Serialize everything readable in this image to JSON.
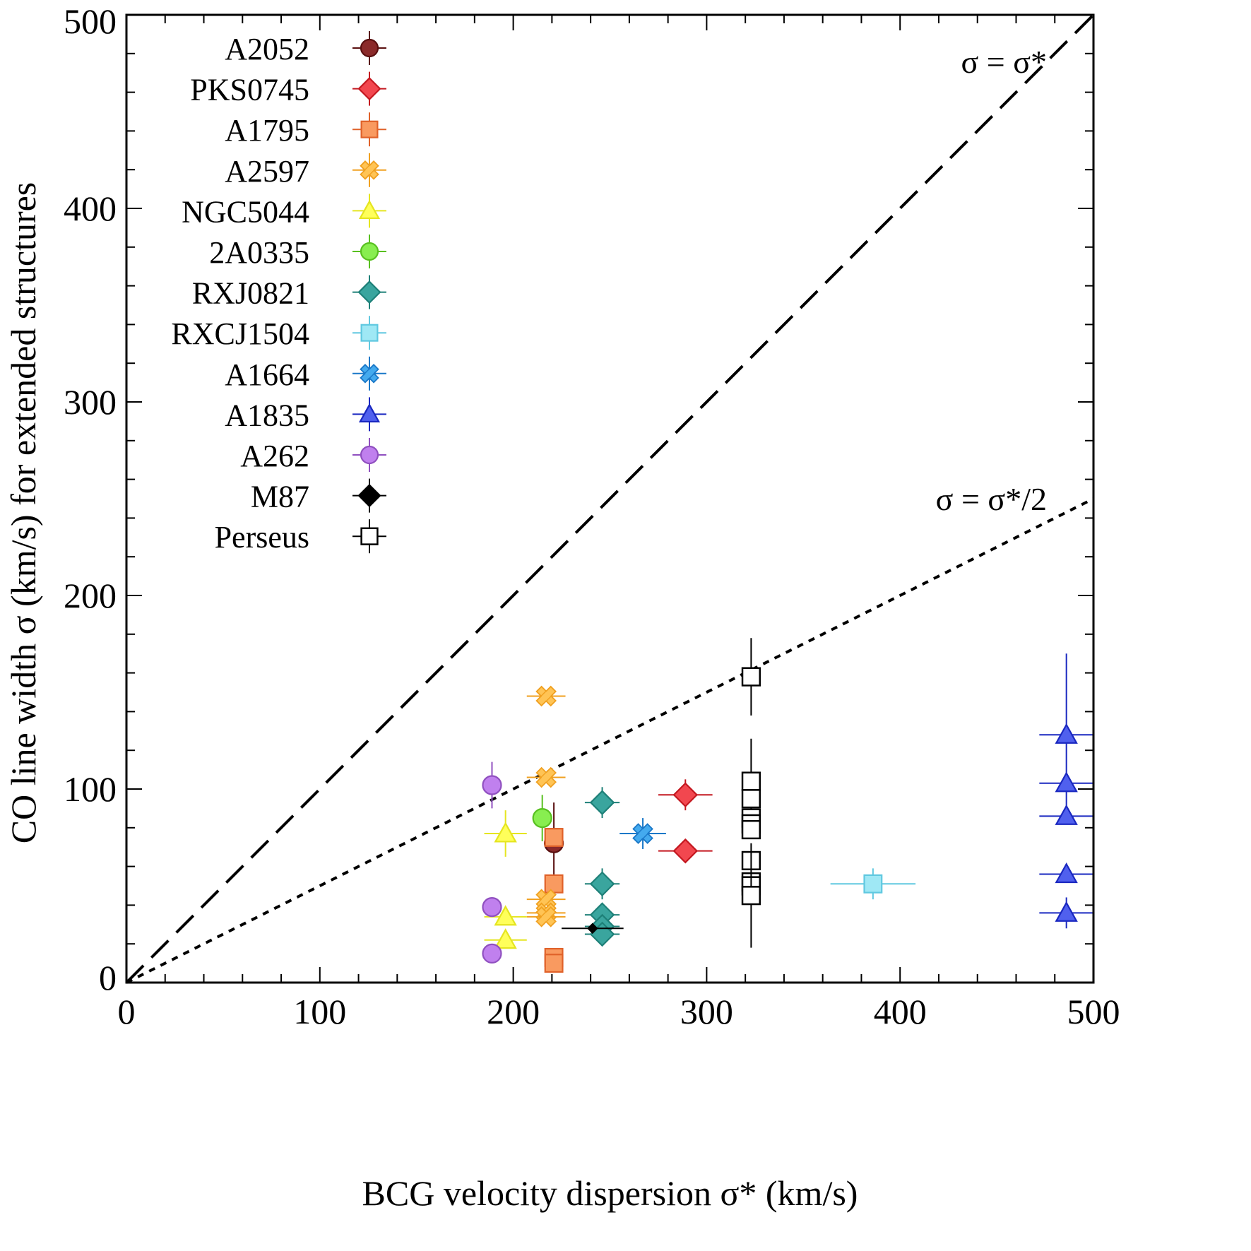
{
  "chart_data": {
    "type": "scatter",
    "title": "",
    "xlabel": "BCG velocity dispersion σ* (km/s)",
    "ylabel": "CO line width σ (km/s) for extended structures",
    "xlim": [
      0,
      500
    ],
    "ylim": [
      0,
      500
    ],
    "x_ticks": [
      "0",
      "100",
      "200",
      "300",
      "400",
      "500"
    ],
    "y_ticks": [
      "0",
      "100",
      "200",
      "300",
      "400",
      "500"
    ],
    "grid": false,
    "legend_position": "top-left",
    "reference_lines": [
      {
        "name": "σ = σ*",
        "slope": 1,
        "style": "dashed"
      },
      {
        "name": "σ = σ*/2",
        "slope": 0.5,
        "style": "dotted"
      }
    ],
    "series": [
      {
        "name": "A2052",
        "marker": "circle",
        "color": "#8b2a2a",
        "edge": "#5a1010",
        "points": [
          {
            "x": 221,
            "y": 72,
            "xerr": 0,
            "yerr": 21
          }
        ]
      },
      {
        "name": "PKS0745",
        "marker": "diamond",
        "color": "#f2474f",
        "edge": "#c41820",
        "points": [
          {
            "x": 289,
            "y": 97,
            "xerr": 14,
            "yerr": 8
          },
          {
            "x": 289,
            "y": 68,
            "xerr": 14,
            "yerr": 0
          }
        ]
      },
      {
        "name": "A1795",
        "marker": "square",
        "color": "#f99a60",
        "edge": "#e0622a",
        "points": [
          {
            "x": 221,
            "y": 75,
            "xerr": 0,
            "yerr": 0
          },
          {
            "x": 221,
            "y": 51,
            "xerr": 0,
            "yerr": 0
          },
          {
            "x": 221,
            "y": 13,
            "xerr": 0,
            "yerr": 0
          },
          {
            "x": 221,
            "y": 10,
            "xerr": 0,
            "yerr": 0
          }
        ]
      },
      {
        "name": "A2597",
        "marker": "x",
        "color": "#ffc455",
        "edge": "#f0a020",
        "points": [
          {
            "x": 217,
            "y": 148,
            "xerr": 10,
            "yerr": 0
          },
          {
            "x": 217,
            "y": 106,
            "xerr": 10,
            "yerr": 0
          },
          {
            "x": 217,
            "y": 43,
            "xerr": 10,
            "yerr": 0
          },
          {
            "x": 217,
            "y": 36,
            "xerr": 10,
            "yerr": 0
          },
          {
            "x": 217,
            "y": 34,
            "xerr": 10,
            "yerr": 0
          }
        ]
      },
      {
        "name": "NGC5044",
        "marker": "triangle",
        "color": "#ffff5a",
        "edge": "#e5e520",
        "points": [
          {
            "x": 196,
            "y": 77,
            "xerr": 11,
            "yerr": 12
          },
          {
            "x": 196,
            "y": 34,
            "xerr": 11,
            "yerr": 0
          },
          {
            "x": 196,
            "y": 22,
            "xerr": 11,
            "yerr": 0
          }
        ]
      },
      {
        "name": "2A0335",
        "marker": "circle",
        "color": "#88ee50",
        "edge": "#58c020",
        "points": [
          {
            "x": 215,
            "y": 85,
            "xerr": 0,
            "yerr": 12
          }
        ]
      },
      {
        "name": "RXJ0821",
        "marker": "diamond",
        "color": "#3aa59e",
        "edge": "#1e8078",
        "points": [
          {
            "x": 246,
            "y": 93,
            "xerr": 9,
            "yerr": 8
          },
          {
            "x": 246,
            "y": 51,
            "xerr": 9,
            "yerr": 8
          },
          {
            "x": 246,
            "y": 35,
            "xerr": 9,
            "yerr": 0
          },
          {
            "x": 246,
            "y": 29,
            "xerr": 9,
            "yerr": 0
          },
          {
            "x": 246,
            "y": 25,
            "xerr": 9,
            "yerr": 0
          }
        ]
      },
      {
        "name": "RXCJ1504",
        "marker": "square",
        "color": "#9fe8f5",
        "edge": "#60c8e0",
        "points": [
          {
            "x": 386,
            "y": 51,
            "xerr": 22,
            "yerr": 8
          }
        ]
      },
      {
        "name": "A1664",
        "marker": "x",
        "color": "#44aaee",
        "edge": "#1a78c8",
        "points": [
          {
            "x": 267,
            "y": 77,
            "xerr": 12,
            "yerr": 8
          }
        ]
      },
      {
        "name": "A1835",
        "marker": "triangle",
        "color": "#5060ee",
        "edge": "#1a28c0",
        "points": [
          {
            "x": 486,
            "y": 128,
            "xerr": 14,
            "yerr": 42
          },
          {
            "x": 486,
            "y": 103,
            "xerr": 14,
            "yerr": 0
          },
          {
            "x": 486,
            "y": 86,
            "xerr": 14,
            "yerr": 0
          },
          {
            "x": 486,
            "y": 56,
            "xerr": 14,
            "yerr": 0
          },
          {
            "x": 486,
            "y": 36,
            "xerr": 14,
            "yerr": 8
          }
        ]
      },
      {
        "name": "A262",
        "marker": "circle",
        "color": "#c080ee",
        "edge": "#9050c0",
        "points": [
          {
            "x": 189,
            "y": 102,
            "xerr": 0,
            "yerr": 12
          },
          {
            "x": 189,
            "y": 39,
            "xerr": 0,
            "yerr": 0
          },
          {
            "x": 189,
            "y": 15,
            "xerr": 0,
            "yerr": 0
          }
        ]
      },
      {
        "name": "M87",
        "marker": "diamond",
        "color": "#000000",
        "edge": "#000000",
        "points": [
          {
            "x": 241,
            "y": 28,
            "xerr": 16,
            "yerr": 0
          }
        ]
      },
      {
        "name": "Perseus",
        "marker": "square-open",
        "color": "#ffffff",
        "edge": "#000000",
        "points": [
          {
            "x": 323,
            "y": 158,
            "xerr": 0,
            "yerr": 20
          },
          {
            "x": 323,
            "y": 104,
            "xerr": 0,
            "yerr": 22
          },
          {
            "x": 323,
            "y": 95,
            "xerr": 0,
            "yerr": 0
          },
          {
            "x": 323,
            "y": 85,
            "xerr": 0,
            "yerr": 0
          },
          {
            "x": 323,
            "y": 82,
            "xerr": 0,
            "yerr": 0
          },
          {
            "x": 323,
            "y": 79,
            "xerr": 0,
            "yerr": 0
          },
          {
            "x": 323,
            "y": 63,
            "xerr": 0,
            "yerr": 0
          },
          {
            "x": 323,
            "y": 52,
            "xerr": 0,
            "yerr": 0
          },
          {
            "x": 323,
            "y": 50,
            "xerr": 0,
            "yerr": 0
          },
          {
            "x": 323,
            "y": 45,
            "xerr": 0,
            "yerr": 27
          }
        ]
      }
    ]
  }
}
